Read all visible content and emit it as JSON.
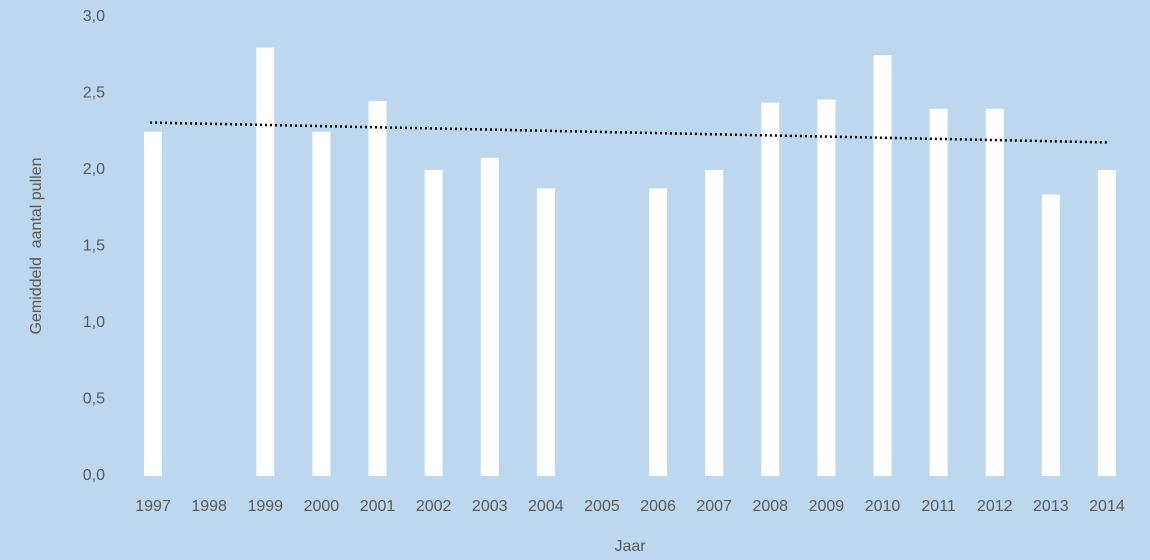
{
  "chart_data": {
    "type": "bar",
    "categories": [
      "1997",
      "1998",
      "1999",
      "2000",
      "2001",
      "2002",
      "2003",
      "2004",
      "2005",
      "2006",
      "2007",
      "2008",
      "2009",
      "2010",
      "2011",
      "2012",
      "2013",
      "2014"
    ],
    "values": [
      2.25,
      null,
      2.8,
      2.25,
      2.45,
      2.0,
      2.08,
      1.88,
      null,
      1.88,
      2.0,
      2.44,
      2.46,
      2.75,
      2.4,
      2.4,
      1.84,
      2.0
    ],
    "color": "#ffffff",
    "ylim": [
      0,
      3
    ],
    "yticks": [
      {
        "value": 0,
        "label": "0,0"
      },
      {
        "value": 0.5,
        "label": "0,5"
      },
      {
        "value": 1,
        "label": "1,0"
      },
      {
        "value": 1.5,
        "label": "1,5"
      },
      {
        "value": 2,
        "label": "2,0"
      },
      {
        "value": 2.5,
        "label": "2,5"
      },
      {
        "value": 3,
        "label": "3,0"
      }
    ],
    "y_label": "Gemiddeld  aantal pullen",
    "x_label": "Jaar",
    "trend": {
      "start": 2.31,
      "end": 2.18,
      "color": "#000000"
    },
    "grid": false
  }
}
